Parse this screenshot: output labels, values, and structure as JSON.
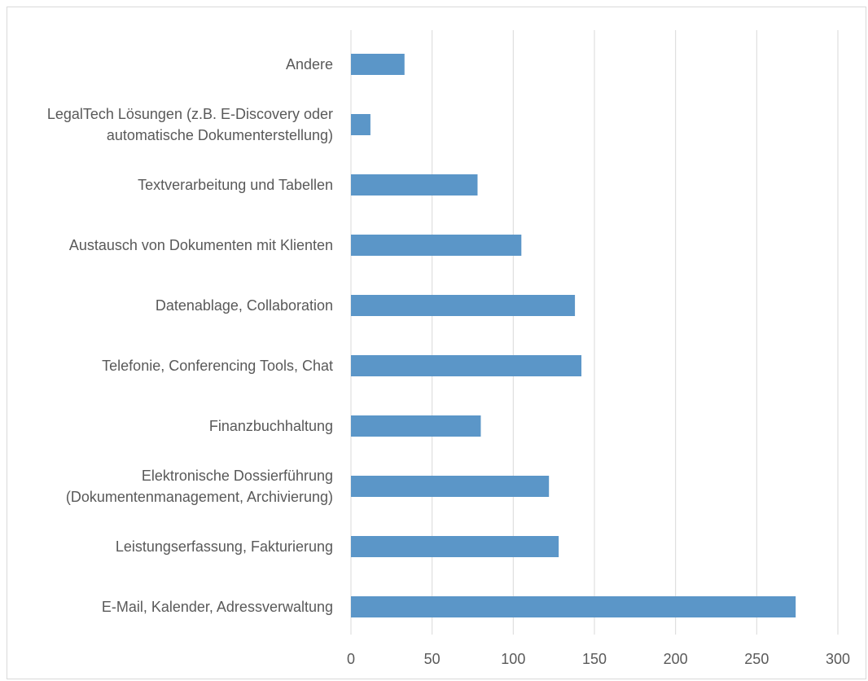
{
  "chart_data": {
    "type": "bar",
    "orientation": "horizontal",
    "title": "",
    "xlabel": "",
    "ylabel": "",
    "categories": [
      [
        "E-Mail, Kalender, Adressverwaltung"
      ],
      [
        "Leistungserfassung, Fakturierung"
      ],
      [
        "Elektronische Dossierführung",
        "(Dokumentenmanagement, Archivierung)"
      ],
      [
        "Finanzbuchhaltung"
      ],
      [
        "Telefonie, Conferencing Tools, Chat"
      ],
      [
        "Datenablage, Collaboration"
      ],
      [
        "Austausch von Dokumenten mit Klienten"
      ],
      [
        "Textverarbeitung und Tabellen"
      ],
      [
        "LegalTech Lösungen (z.B. E-Discovery oder",
        "automatische Dokumenterstellung)"
      ],
      [
        "Andere"
      ]
    ],
    "values": [
      274,
      128,
      122,
      80,
      142,
      138,
      105,
      78,
      12,
      33
    ],
    "xlim": [
      0,
      300
    ],
    "xticks": [
      0,
      50,
      100,
      150,
      200,
      250,
      300
    ],
    "grid": "vertical",
    "legend": "none",
    "bar_color": "#5b96c8",
    "grid_color": "#d9d9d9",
    "text_color": "#595959"
  }
}
